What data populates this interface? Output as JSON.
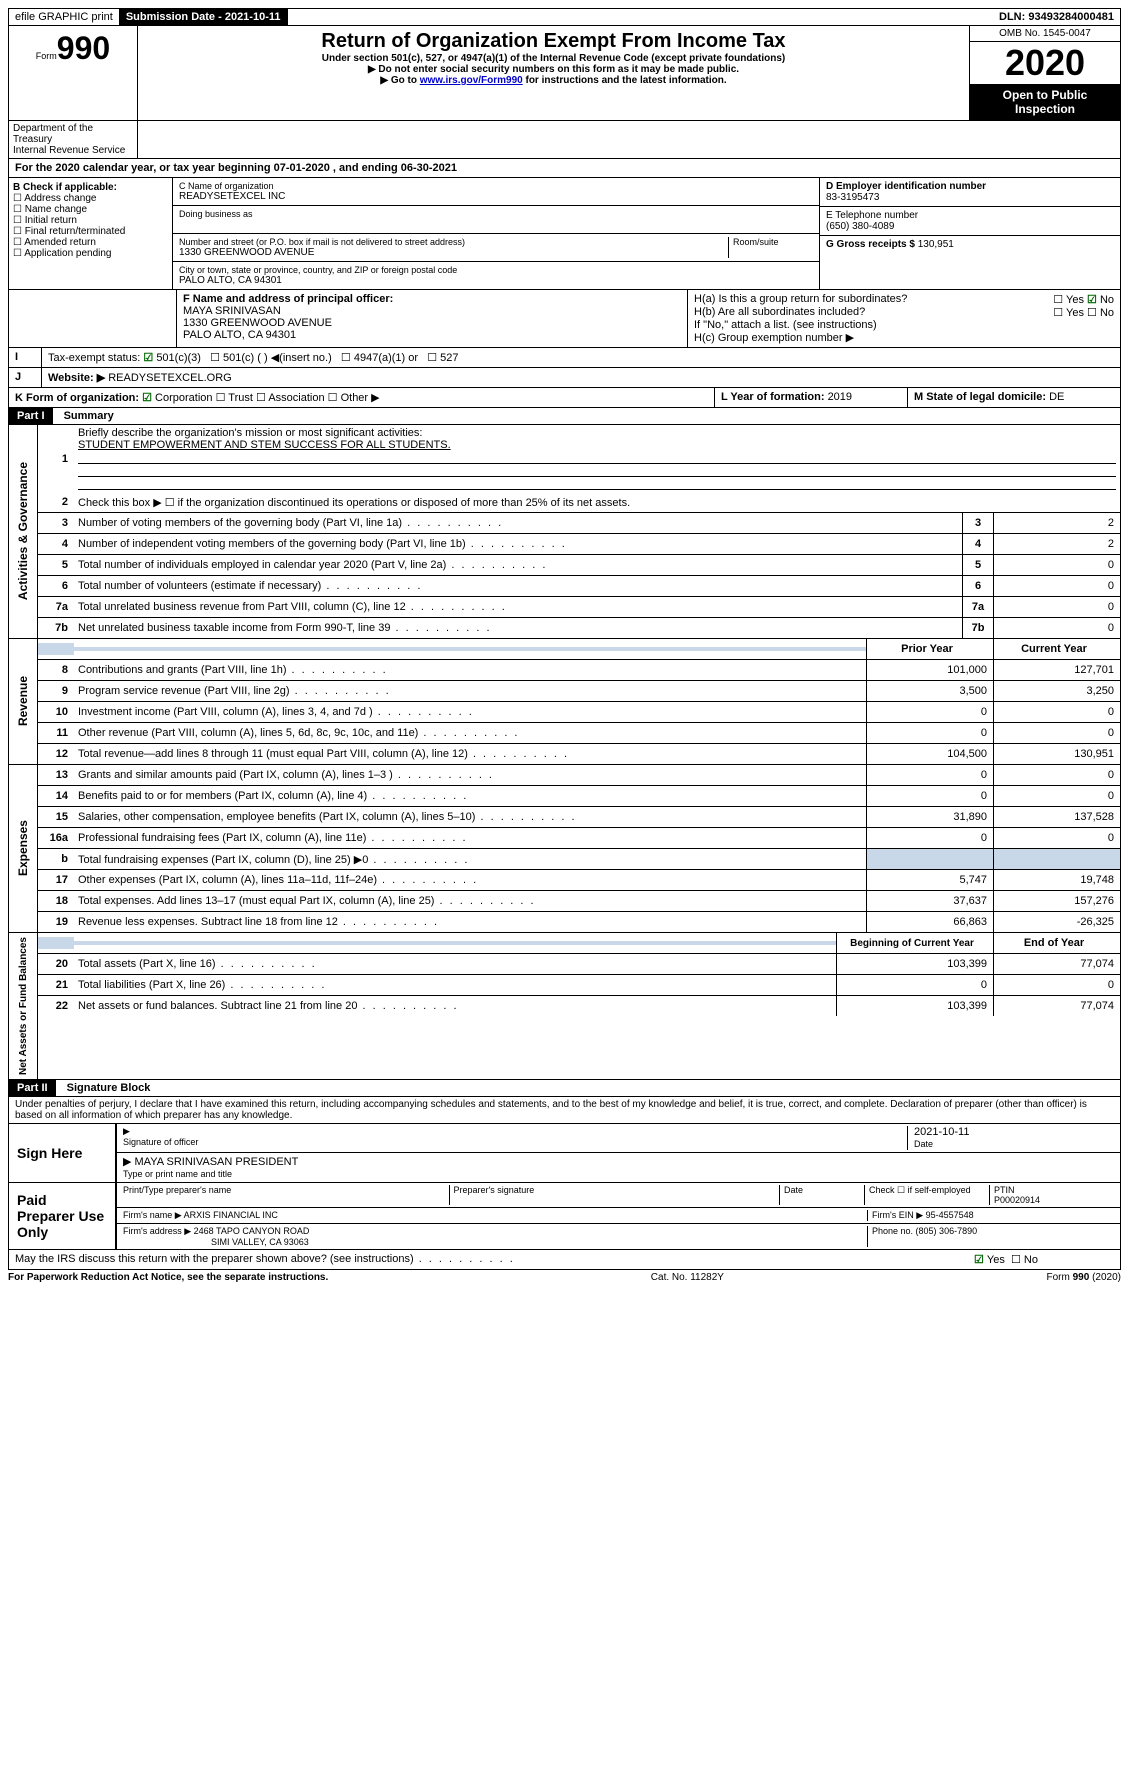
{
  "top": {
    "efile": "efile GRAPHIC print",
    "submission_label": "Submission Date - 2021-10-11",
    "dln": "DLN: 93493284000481"
  },
  "header": {
    "form_prefix": "Form",
    "form_number": "990",
    "title": "Return of Organization Exempt From Income Tax",
    "subtitle": "Under section 501(c), 527, or 4947(a)(1) of the Internal Revenue Code (except private foundations)",
    "note1": "▶ Do not enter social security numbers on this form as it may be made public.",
    "note2_prefix": "▶ Go to ",
    "note2_link": "www.irs.gov/Form990",
    "note2_suffix": " for instructions and the latest information.",
    "omb": "OMB No. 1545-0047",
    "year": "2020",
    "open": "Open to Public Inspection",
    "dept1": "Department of the Treasury",
    "dept2": "Internal Revenue Service"
  },
  "line_a": "For the 2020 calendar year, or tax year beginning 07-01-2020    , and ending 06-30-2021",
  "box_b": {
    "header": "B Check if applicable:",
    "items": [
      "Address change",
      "Name change",
      "Initial return",
      "Final return/terminated",
      "Amended return",
      "Application pending"
    ]
  },
  "box_c": {
    "label": "C Name of organization",
    "name": "READYSETEXCEL INC",
    "dba_label": "Doing business as",
    "addr_label": "Number and street (or P.O. box if mail is not delivered to street address)",
    "room_label": "Room/suite",
    "addr": "1330 GREENWOOD AVENUE",
    "city_label": "City or town, state or province, country, and ZIP or foreign postal code",
    "city": "PALO ALTO, CA  94301"
  },
  "box_d": {
    "label": "D Employer identification number",
    "val": "83-3195473"
  },
  "box_e": {
    "label": "E Telephone number",
    "val": "(650) 380-4089"
  },
  "box_g": {
    "label": "G Gross receipts $ ",
    "val": "130,951"
  },
  "box_f": {
    "label": "F  Name and address of principal officer:",
    "name": "MAYA SRINIVASAN",
    "addr1": "1330 GREENWOOD AVENUE",
    "addr2": "PALO ALTO, CA  94301"
  },
  "box_h": {
    "a": "H(a)  Is this a group return for subordinates?",
    "b": "H(b)  Are all subordinates included?",
    "b_note": "If \"No,\" attach a list. (see instructions)",
    "c": "H(c)  Group exemption number ▶",
    "yes": "Yes",
    "no": "No"
  },
  "box_i": {
    "label": "Tax-exempt status:",
    "opts": [
      "501(c)(3)",
      "501(c) (  ) ◀(insert no.)",
      "4947(a)(1) or",
      "527"
    ]
  },
  "box_j": {
    "label": "Website: ▶",
    "val": "READYSETEXCEL.ORG"
  },
  "box_k": {
    "label": "K Form of organization:",
    "opts": [
      "Corporation",
      "Trust",
      "Association",
      "Other ▶"
    ]
  },
  "box_l": {
    "label": "L Year of formation: ",
    "val": "2019"
  },
  "box_m": {
    "label": "M State of legal domicile: ",
    "val": "DE"
  },
  "part1": {
    "header": "Part I",
    "title": "Summary",
    "sections": {
      "gov": "Activities & Governance",
      "rev": "Revenue",
      "exp": "Expenses",
      "net": "Net Assets or Fund Balances"
    },
    "line1": "Briefly describe the organization's mission or most significant activities:",
    "line1_val": "STUDENT EMPOWERMENT AND STEM SUCCESS FOR ALL STUDENTS.",
    "line2": "Check this box ▶ ☐  if the organization discontinued its operations or disposed of more than 25% of its net assets.",
    "rows_gov": [
      {
        "n": "3",
        "d": "Number of voting members of the governing body (Part VI, line 1a)",
        "b": "3",
        "v": "2"
      },
      {
        "n": "4",
        "d": "Number of independent voting members of the governing body (Part VI, line 1b)",
        "b": "4",
        "v": "2"
      },
      {
        "n": "5",
        "d": "Total number of individuals employed in calendar year 2020 (Part V, line 2a)",
        "b": "5",
        "v": "0"
      },
      {
        "n": "6",
        "d": "Total number of volunteers (estimate if necessary)",
        "b": "6",
        "v": "0"
      },
      {
        "n": "7a",
        "d": "Total unrelated business revenue from Part VIII, column (C), line 12",
        "b": "7a",
        "v": "0"
      },
      {
        "n": "7b",
        "d": "Net unrelated business taxable income from Form 990-T, line 39",
        "b": "7b",
        "v": "0"
      }
    ],
    "col_prior": "Prior Year",
    "col_current": "Current Year",
    "col_beg": "Beginning of Current Year",
    "col_end": "End of Year",
    "rows_rev": [
      {
        "n": "8",
        "d": "Contributions and grants (Part VIII, line 1h)",
        "p": "101,000",
        "c": "127,701"
      },
      {
        "n": "9",
        "d": "Program service revenue (Part VIII, line 2g)",
        "p": "3,500",
        "c": "3,250"
      },
      {
        "n": "10",
        "d": "Investment income (Part VIII, column (A), lines 3, 4, and 7d )",
        "p": "0",
        "c": "0"
      },
      {
        "n": "11",
        "d": "Other revenue (Part VIII, column (A), lines 5, 6d, 8c, 9c, 10c, and 11e)",
        "p": "0",
        "c": "0"
      },
      {
        "n": "12",
        "d": "Total revenue—add lines 8 through 11 (must equal Part VIII, column (A), line 12)",
        "p": "104,500",
        "c": "130,951"
      }
    ],
    "rows_exp": [
      {
        "n": "13",
        "d": "Grants and similar amounts paid (Part IX, column (A), lines 1–3 )",
        "p": "0",
        "c": "0"
      },
      {
        "n": "14",
        "d": "Benefits paid to or for members (Part IX, column (A), line 4)",
        "p": "0",
        "c": "0"
      },
      {
        "n": "15",
        "d": "Salaries, other compensation, employee benefits (Part IX, column (A), lines 5–10)",
        "p": "31,890",
        "c": "137,528"
      },
      {
        "n": "16a",
        "d": "Professional fundraising fees (Part IX, column (A), line 11e)",
        "p": "0",
        "c": "0"
      },
      {
        "n": "b",
        "d": "Total fundraising expenses (Part IX, column (D), line 25) ▶0",
        "p": "",
        "c": "",
        "shade": true
      },
      {
        "n": "17",
        "d": "Other expenses (Part IX, column (A), lines 11a–11d, 11f–24e)",
        "p": "5,747",
        "c": "19,748"
      },
      {
        "n": "18",
        "d": "Total expenses. Add lines 13–17 (must equal Part IX, column (A), line 25)",
        "p": "37,637",
        "c": "157,276"
      },
      {
        "n": "19",
        "d": "Revenue less expenses. Subtract line 18 from line 12",
        "p": "66,863",
        "c": "-26,325"
      }
    ],
    "rows_net": [
      {
        "n": "20",
        "d": "Total assets (Part X, line 16)",
        "p": "103,399",
        "c": "77,074"
      },
      {
        "n": "21",
        "d": "Total liabilities (Part X, line 26)",
        "p": "0",
        "c": "0"
      },
      {
        "n": "22",
        "d": "Net assets or fund balances. Subtract line 21 from line 20",
        "p": "103,399",
        "c": "77,074"
      }
    ]
  },
  "part2": {
    "header": "Part II",
    "title": "Signature Block",
    "perjury": "Under penalties of perjury, I declare that I have examined this return, including accompanying schedules and statements, and to the best of my knowledge and belief, it is true, correct, and complete. Declaration of preparer (other than officer) is based on all information of which preparer has any knowledge.",
    "sign_here": "Sign Here",
    "sig_officer": "Signature of officer",
    "sig_date": "2021-10-11",
    "date_label": "Date",
    "sig_name": "MAYA SRINIVASAN  PRESIDENT",
    "sig_name_label": "Type or print name and title",
    "paid": "Paid Preparer Use Only",
    "prep_name_label": "Print/Type preparer's name",
    "prep_sig_label": "Preparer's signature",
    "prep_date_label": "Date",
    "check_self": "Check ☐ if self-employed",
    "ptin_label": "PTIN",
    "ptin": "P00020914",
    "firm_name_label": "Firm's name    ▶ ",
    "firm_name": "ARXIS FINANCIAL INC",
    "firm_ein_label": "Firm's EIN ▶ ",
    "firm_ein": "95-4557548",
    "firm_addr_label": "Firm's address ▶ ",
    "firm_addr1": "2468 TAPO CANYON ROAD",
    "firm_addr2": "SIMI VALLEY, CA  93063",
    "phone_label": "Phone no. ",
    "phone": "(805) 306-7890",
    "discuss": "May the IRS discuss this return with the preparer shown above? (see instructions)",
    "yes": "Yes",
    "no": "No"
  },
  "footer": {
    "left": "For Paperwork Reduction Act Notice, see the separate instructions.",
    "mid": "Cat. No. 11282Y",
    "right": "Form 990 (2020)"
  }
}
